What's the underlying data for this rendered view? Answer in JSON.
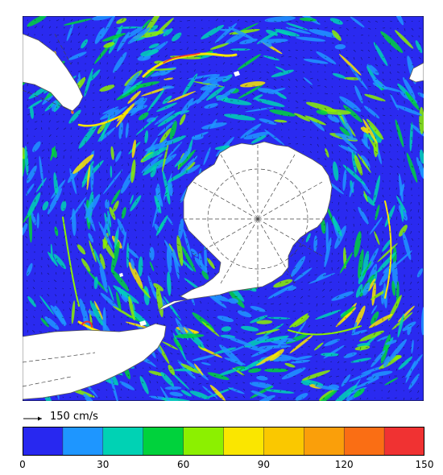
{
  "map": {
    "projection": "south-polar-stereographic",
    "field": "ocean surface current speed",
    "background_color": "#2a2af0",
    "land_color": "#ffffff",
    "coastline_color": "#555555",
    "graticule_style": "dashed"
  },
  "scale": {
    "label": "150 cm/s",
    "arrow_speed": 150
  },
  "colorbar": {
    "min": 0,
    "max": 150,
    "ticks": [
      0,
      30,
      60,
      90,
      120,
      150
    ],
    "tick_labels": [
      "0",
      "30",
      "60",
      "90",
      "120",
      "150"
    ],
    "colors": [
      "#2828f0",
      "#1e96ff",
      "#00d2b4",
      "#00d23c",
      "#8cf000",
      "#fae600",
      "#fac800",
      "#fa9f0a",
      "#fa6e14",
      "#f03232"
    ]
  }
}
